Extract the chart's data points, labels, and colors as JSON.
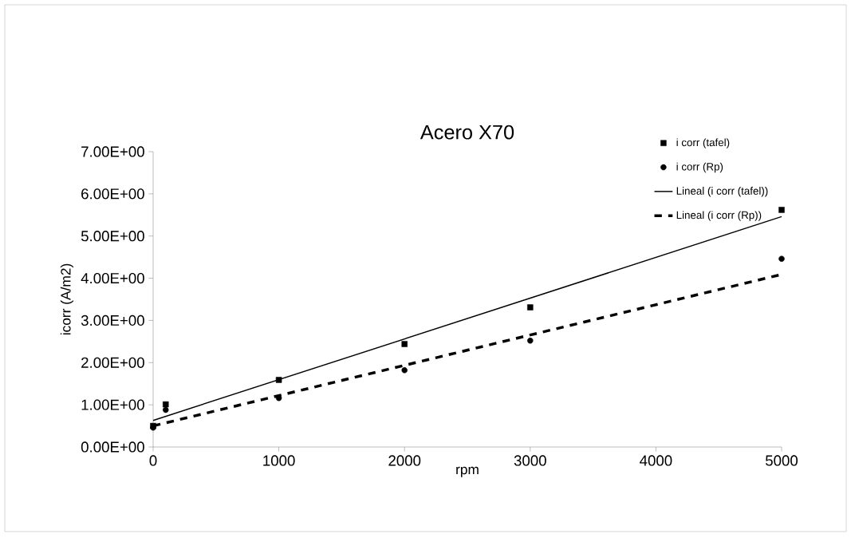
{
  "chart_data": {
    "type": "scatter",
    "title": "Acero X70",
    "xlabel": "rpm",
    "ylabel": "icorr (A/m2)",
    "xlim": [
      0,
      5000
    ],
    "xticks": [
      0,
      1000,
      2000,
      3000,
      4000,
      5000
    ],
    "ylim": [
      0,
      7
    ],
    "yticks": [
      {
        "value": 0,
        "label": "0.00E+00"
      },
      {
        "value": 1,
        "label": "1.00E+00"
      },
      {
        "value": 2,
        "label": "2.00E+00"
      },
      {
        "value": 3,
        "label": "3.00E+00"
      },
      {
        "value": 4,
        "label": "4.00E+00"
      },
      {
        "value": 5,
        "label": "5.00E+00"
      },
      {
        "value": 6,
        "label": "6.00E+00"
      },
      {
        "value": 7,
        "label": "7.00E+00"
      }
    ],
    "legend": "right",
    "series": [
      {
        "name": "i corr (tafel)",
        "marker": "square",
        "color": "#000000",
        "x": [
          0,
          100,
          1000,
          2000,
          3000,
          5000
        ],
        "values": [
          0.5,
          1.01,
          1.59,
          2.44,
          3.31,
          5.62
        ]
      },
      {
        "name": "i corr (Rp)",
        "marker": "circle",
        "color": "#000000",
        "x": [
          0,
          100,
          1000,
          2000,
          3000,
          5000
        ],
        "values": [
          0.46,
          0.88,
          1.16,
          1.82,
          2.52,
          4.46
        ]
      },
      {
        "name": "Lineal (i corr (tafel))",
        "type": "line",
        "line_style": "solid",
        "color": "#000000",
        "x": [
          0,
          5000
        ],
        "values": [
          0.63,
          5.46
        ]
      },
      {
        "name": "Lineal (i corr (Rp))",
        "type": "line",
        "line_style": "dashed",
        "color": "#000000",
        "x": [
          0,
          5000
        ],
        "values": [
          0.5,
          4.09
        ]
      }
    ]
  }
}
